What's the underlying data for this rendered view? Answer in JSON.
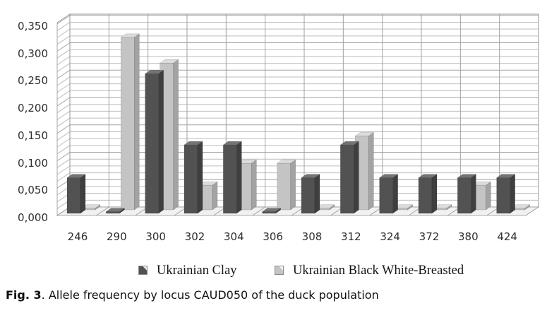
{
  "figure": {
    "caption_prefix": "Fig. 3",
    "caption_text": ". Allele frequency by locus CAUD050 of the duck population"
  },
  "chart_data": {
    "type": "bar",
    "style": "3d-clustered-column",
    "title": "",
    "xlabel": "",
    "ylabel": "",
    "ylim": [
      0,
      0.35
    ],
    "y_major_step": 0.05,
    "y_minor_step": 0.0125,
    "decimal_separator": ",",
    "grid": true,
    "legend_position": "bottom",
    "categories": [
      "246",
      "290",
      "300",
      "302",
      "304",
      "306",
      "308",
      "312",
      "324",
      "372",
      "380",
      "424"
    ],
    "yticks": [
      "0,000",
      "0,050",
      "0,100",
      "0,150",
      "0,200",
      "0,250",
      "0,300",
      "0,350"
    ],
    "series": [
      {
        "name": "Ukrainian Clay",
        "color": "#525252",
        "color_side": "#3f3f3f",
        "color_top": "#737373",
        "swatch_notch": "#e6e6e6",
        "values": [
          0.065,
          0.003,
          0.255,
          0.125,
          0.125,
          0.003,
          0.065,
          0.125,
          0.065,
          0.065,
          0.065,
          0.065
        ]
      },
      {
        "name": "Ukrainian Black White-Breasted",
        "color": "#c4c4c4",
        "color_side": "#a3a3a3",
        "color_top": "#dcdcdc",
        "swatch_notch": "#f7f7f7",
        "values": [
          0.003,
          0.315,
          0.268,
          0.045,
          0.085,
          0.085,
          0.003,
          0.135,
          0.003,
          0.003,
          0.045,
          0.003
        ]
      }
    ]
  },
  "colors": {
    "background": "#ffffff",
    "wall_fill": "#ffffff",
    "wall_border": "#949494",
    "floor_fill": "#f1f1f1",
    "grid_minor": "#bdbdbd",
    "grid_major": "#a2a2a2",
    "axis_text": "#2e2e2e"
  }
}
